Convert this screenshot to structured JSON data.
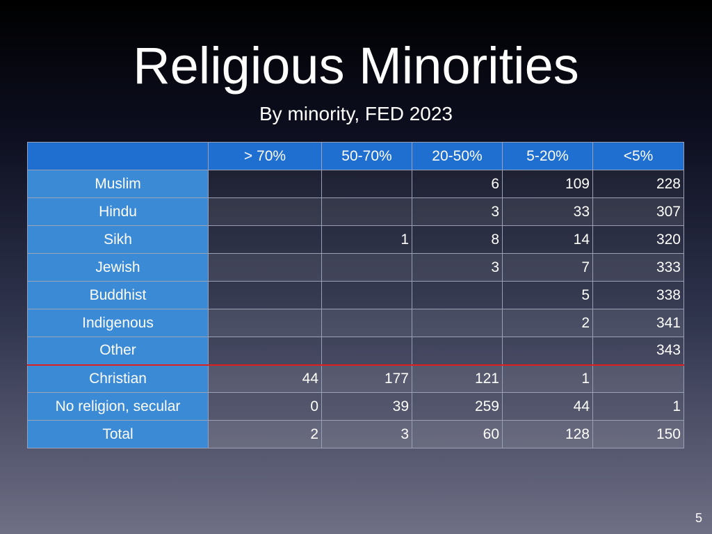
{
  "slide": {
    "title": "Religious Minorities",
    "subtitle": "By minority, FED 2023",
    "page_number": "5"
  },
  "table": {
    "columns": [
      "",
      "> 70%",
      "50-70%",
      "20-50%",
      "5-20%",
      "<5%"
    ],
    "rows": [
      {
        "label": "Muslim",
        "cells": [
          "",
          "",
          "6",
          "109",
          "228"
        ]
      },
      {
        "label": "Hindu",
        "cells": [
          "",
          "",
          "3",
          "33",
          "307"
        ]
      },
      {
        "label": "Sikh",
        "cells": [
          "",
          "1",
          "8",
          "14",
          "320"
        ]
      },
      {
        "label": "Jewish",
        "cells": [
          "",
          "",
          "3",
          "7",
          "333"
        ]
      },
      {
        "label": "Buddhist",
        "cells": [
          "",
          "",
          "",
          "5",
          "338"
        ]
      },
      {
        "label": "Indigenous",
        "cells": [
          "",
          "",
          "",
          "2",
          "341"
        ]
      },
      {
        "label": "Other",
        "cells": [
          "",
          "",
          "",
          "",
          "343"
        ]
      },
      {
        "label": "Christian",
        "cells": [
          "44",
          "177",
          "121",
          "1",
          ""
        ]
      },
      {
        "label": "No religion, secular",
        "cells": [
          "0",
          "39",
          "259",
          "44",
          "1"
        ]
      },
      {
        "label": "Total",
        "cells": [
          "2",
          "3",
          "60",
          "128",
          "150"
        ]
      }
    ],
    "separator_color": "#e01e1e",
    "header_color": "#1f6fd0",
    "row_header_color": "#3a8ad6"
  }
}
